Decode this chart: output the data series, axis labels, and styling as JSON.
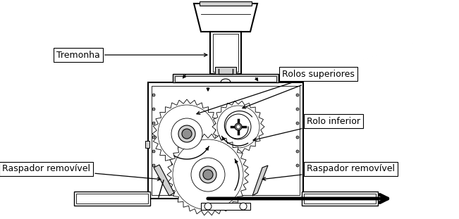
{
  "fig_width": 6.51,
  "fig_height": 3.11,
  "dpi": 100,
  "bg_color": "#ffffff",
  "labels": {
    "tremonha": "Tremonha",
    "rolos_superiores": "Rolos superiores",
    "rolo_inferior": "Rolo inferior",
    "raspador_left": "Raspador removível",
    "raspador_right": "Raspador removível"
  },
  "font_size": 9,
  "box_style": {
    "boxstyle": "square,pad=0.3",
    "facecolor": "white",
    "edgecolor": "black",
    "linewidth": 0.8
  }
}
